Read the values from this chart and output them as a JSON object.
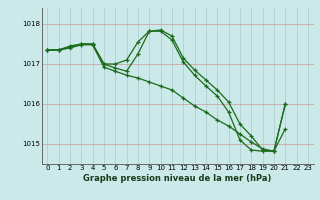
{
  "bg_color": "#cce9e9",
  "grid_color_h": "#cc9999",
  "grid_color_v": "#aacccc",
  "line_color": "#1a6b1a",
  "title": "Graphe pression niveau de la mer (hPa)",
  "xlim": [
    -0.5,
    23.5
  ],
  "ylim": [
    1014.5,
    1018.4
  ],
  "yticks": [
    1015,
    1016,
    1017,
    1018
  ],
  "xticks": [
    0,
    1,
    2,
    3,
    4,
    5,
    6,
    7,
    8,
    9,
    10,
    11,
    12,
    13,
    14,
    15,
    16,
    17,
    18,
    19,
    20,
    21,
    22,
    23
  ],
  "series": [
    [
      1017.35,
      1017.35,
      1017.45,
      1017.5,
      1017.5,
      1017.0,
      1017.0,
      1017.1,
      1017.55,
      1017.82,
      1017.85,
      1017.7,
      1017.15,
      1016.85,
      1016.6,
      1016.35,
      1016.05,
      1015.5,
      1015.2,
      1014.85,
      1014.82,
      1016.0,
      null,
      null
    ],
    [
      1017.35,
      1017.35,
      1017.42,
      1017.5,
      1017.5,
      1017.0,
      1016.9,
      1016.82,
      1017.25,
      1017.82,
      1017.82,
      1017.6,
      1017.05,
      1016.72,
      1016.45,
      1016.2,
      1015.8,
      1015.1,
      1014.85,
      1014.82,
      1014.82,
      1015.38,
      null,
      null
    ],
    [
      1017.35,
      1017.35,
      1017.4,
      1017.48,
      1017.48,
      1016.92,
      1016.82,
      1016.72,
      1016.65,
      1016.55,
      1016.45,
      1016.35,
      1016.15,
      1015.95,
      1015.8,
      1015.6,
      1015.45,
      1015.25,
      1015.05,
      1014.88,
      1014.82,
      1016.0,
      null,
      null
    ]
  ]
}
